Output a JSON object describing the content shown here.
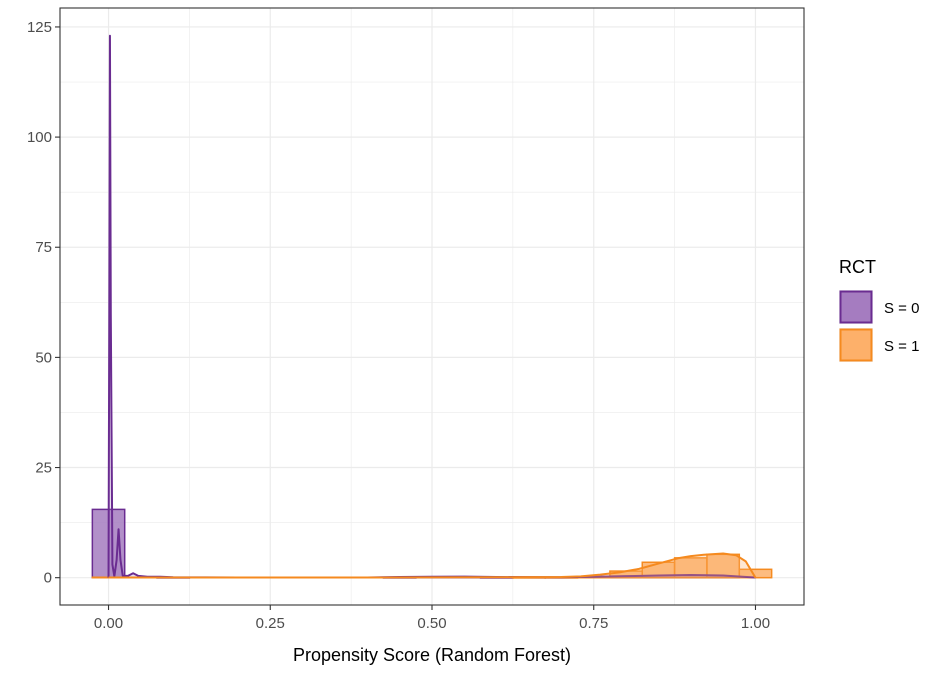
{
  "chart_data": {
    "type": "histogram+density",
    "title": "",
    "xlabel": "Propensity Score (Random Forest)",
    "ylabel": "",
    "xlim": [
      -0.075,
      1.075
    ],
    "ylim": [
      -6.2,
      129.3
    ],
    "x_ticks": [
      0.0,
      0.25,
      0.5,
      0.75,
      1.0
    ],
    "x_tick_labels": [
      "0.00",
      "0.25",
      "0.50",
      "0.75",
      "1.00"
    ],
    "y_ticks": [
      0,
      25,
      50,
      75,
      100,
      125
    ],
    "y_tick_labels": [
      "0",
      "25",
      "50",
      "75",
      "100",
      "125"
    ],
    "grid": true,
    "legend": {
      "title": "RCT",
      "position": "right",
      "entries": [
        {
          "label": "S = 0",
          "fill": "#a57cc0",
          "stroke": "#6a2c91"
        },
        {
          "label": "S = 1",
          "fill": "#fdb06a",
          "stroke": "#f58a1f"
        }
      ]
    },
    "histogram": {
      "bin_width": 0.05,
      "series": [
        {
          "name": "S = 0",
          "fill": "#a57cc0",
          "stroke": "#6a2c91",
          "bins": [
            {
              "center": 0.0,
              "value": 15.5
            },
            {
              "center": 0.05,
              "value": 0.1
            },
            {
              "center": 0.1,
              "value": 0.05
            },
            {
              "center": 0.45,
              "value": 0.05
            },
            {
              "center": 0.5,
              "value": 0.1
            },
            {
              "center": 0.55,
              "value": 0.1
            },
            {
              "center": 0.6,
              "value": 0.05
            },
            {
              "center": 0.8,
              "value": 0.3
            },
            {
              "center": 0.85,
              "value": 0.4
            },
            {
              "center": 0.9,
              "value": 0.5
            },
            {
              "center": 0.95,
              "value": 0.3
            }
          ]
        },
        {
          "name": "S = 1",
          "fill": "#fdb06a",
          "stroke": "#f58a1f",
          "bins": [
            {
              "center": 0.0,
              "value": 0.1
            },
            {
              "center": 0.65,
              "value": 0.05
            },
            {
              "center": 0.7,
              "value": 0.05
            },
            {
              "center": 0.75,
              "value": 0.1
            },
            {
              "center": 0.8,
              "value": 1.5
            },
            {
              "center": 0.85,
              "value": 3.5
            },
            {
              "center": 0.9,
              "value": 4.5
            },
            {
              "center": 0.95,
              "value": 5.3
            },
            {
              "center": 1.0,
              "value": 1.9
            }
          ]
        }
      ]
    },
    "density": {
      "series": [
        {
          "name": "S = 0",
          "stroke": "#6a2c91",
          "fill": "#a57cc0",
          "fill_opacity": 0.25,
          "points": [
            [
              0.0,
              0.0
            ],
            [
              0.0012,
              60
            ],
            [
              0.0022,
              123
            ],
            [
              0.0035,
              60
            ],
            [
              0.006,
              3
            ],
            [
              0.009,
              0.3
            ],
            [
              0.0125,
              4
            ],
            [
              0.0155,
              11
            ],
            [
              0.0185,
              4
            ],
            [
              0.022,
              0.4
            ],
            [
              0.03,
              0.4
            ],
            [
              0.038,
              1.0
            ],
            [
              0.046,
              0.4
            ],
            [
              0.06,
              0.2
            ],
            [
              0.08,
              0.2
            ],
            [
              0.1,
              0.1
            ],
            [
              0.2,
              0.05
            ],
            [
              0.4,
              0.05
            ],
            [
              0.45,
              0.15
            ],
            [
              0.5,
              0.2
            ],
            [
              0.55,
              0.25
            ],
            [
              0.6,
              0.15
            ],
            [
              0.7,
              0.1
            ],
            [
              0.75,
              0.2
            ],
            [
              0.8,
              0.35
            ],
            [
              0.85,
              0.5
            ],
            [
              0.9,
              0.6
            ],
            [
              0.95,
              0.5
            ],
            [
              0.98,
              0.2
            ],
            [
              1.0,
              0.05
            ]
          ]
        },
        {
          "name": "S = 1",
          "stroke": "#f58a1f",
          "fill": "#fdb06a",
          "fill_opacity": 0.3,
          "points": [
            [
              0.0,
              0.05
            ],
            [
              0.4,
              0.05
            ],
            [
              0.6,
              0.1
            ],
            [
              0.7,
              0.15
            ],
            [
              0.73,
              0.3
            ],
            [
              0.76,
              0.7
            ],
            [
              0.79,
              1.2
            ],
            [
              0.82,
              2.0
            ],
            [
              0.85,
              3.2
            ],
            [
              0.88,
              4.4
            ],
            [
              0.9,
              4.9
            ],
            [
              0.92,
              5.2
            ],
            [
              0.95,
              5.5
            ],
            [
              0.97,
              5.1
            ],
            [
              0.985,
              3.7
            ],
            [
              1.0,
              0.0
            ]
          ]
        }
      ]
    }
  }
}
